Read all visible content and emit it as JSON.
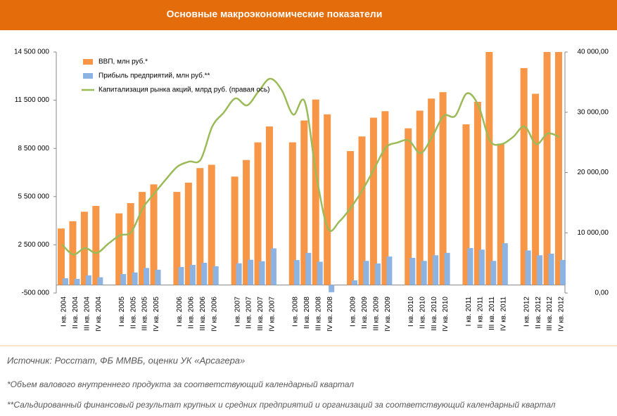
{
  "header": {
    "title": "Основные макроэкономические показатели"
  },
  "chart_data": {
    "type": "bar_line",
    "categories": [
      "I кв. 2004",
      "II кв. 2004",
      "III кв. 2004",
      "IV кв. 2004",
      null,
      "I кв. 2005",
      "II кв. 2005",
      "III кв. 2005",
      "IV кв. 2005",
      null,
      "I кв. 2006",
      "II кв. 2006",
      "III кв. 2006",
      "IV кв. 2006",
      null,
      "I кв. 2007",
      "II кв. 2007",
      "III кв. 2007",
      "IV кв. 2007",
      null,
      "I кв. 2008",
      "II кв. 2008",
      "III кв. 2008",
      "IV кв. 2008",
      null,
      "I кв. 2009",
      "II кв. 2009",
      "III кв. 2009",
      "IV кв. 2009",
      null,
      "I кв. 2010",
      "II кв. 2010",
      "III кв. 2010",
      "IV кв. 2010",
      null,
      "I кв. 2011",
      "II кв. 2011",
      "III кв. 2011",
      "IV кв. 2011",
      null,
      "I кв. 2012",
      "II кв. 2012",
      "III кв. 2012",
      "IV кв. 2012"
    ],
    "series": [
      {
        "name": "ВВП, млн руб.*",
        "kind": "bar",
        "color": "#f79646",
        "values": [
          3516000,
          3969000,
          4561000,
          4920000,
          null,
          4458000,
          5095000,
          5792000,
          6262000,
          null,
          5793000,
          6368000,
          7275000,
          7481000,
          null,
          6747000,
          7780000,
          8877000,
          9866000,
          null,
          8877000,
          10238000,
          11542000,
          10618000,
          null,
          8335000,
          9245000,
          10411000,
          10816000,
          null,
          9750000,
          10850000,
          11600000,
          12000000,
          null,
          10000000,
          11400000,
          14500000,
          8800000,
          null,
          13500000,
          11900000,
          14500000,
          14500000
        ]
      },
      {
        "name": "Прибыль предприятий, млн руб.**",
        "kind": "bar",
        "color": "#8db3e2",
        "values": [
          420000,
          380000,
          600000,
          480000,
          null,
          680000,
          780000,
          1060000,
          950000,
          null,
          1120000,
          1250000,
          1380000,
          1160000,
          null,
          1350000,
          1570000,
          1480000,
          2280000,
          null,
          1550000,
          2000000,
          1450000,
          -450000,
          null,
          290000,
          1500000,
          1340000,
          1770000,
          null,
          1690000,
          1500000,
          1850000,
          2000000,
          null,
          2300000,
          2200000,
          1500000,
          2600000,
          null,
          2150000,
          1850000,
          1950000,
          1560000
        ]
      },
      {
        "name": "Капитализация рынка акций, млрд руб. (правая ось)",
        "kind": "line",
        "axis": "y2",
        "color": "#9bbb59",
        "values": [
          8050,
          6400,
          7460,
          6640,
          8160,
          9560,
          10150,
          14110,
          16560,
          18890,
          20990,
          21810,
          22160,
          27640,
          29970,
          32300,
          31140,
          33470,
          35570,
          33700,
          29620,
          31720,
          19480,
          10730,
          11900,
          14230,
          17140,
          20640,
          24140,
          24960,
          25310,
          23210,
          25890,
          29390,
          29390,
          33120,
          31140,
          25310,
          24720,
          25890,
          27640,
          24720,
          26470,
          25890
        ]
      }
    ],
    "ylim": [
      -500000,
      14500000
    ],
    "yticks": [
      {
        "value": -500000,
        "label": "-500 000"
      },
      {
        "value": 2500000,
        "label": "2 500 000"
      },
      {
        "value": 5500000,
        "label": "5 500 000"
      },
      {
        "value": 8500000,
        "label": "8 500 000"
      },
      {
        "value": 11500000,
        "label": "11 500 000"
      },
      {
        "value": 14500000,
        "label": "14 500 000"
      }
    ],
    "y2lim": [
      0,
      40000
    ],
    "y2ticks": [
      {
        "value": 0,
        "label": "0,00"
      },
      {
        "value": 10000,
        "label": "10 000,00"
      },
      {
        "value": 20000,
        "label": "20 000,00"
      },
      {
        "value": 30000,
        "label": "30 000,00"
      },
      {
        "value": 40000,
        "label": "40 000,00"
      }
    ],
    "legend": "top-left"
  },
  "notes": [
    "Источник: Росстат, ФБ ММВБ, оценки УК «Арсагера»",
    "*Объем валового внутреннего продукта за соответствующий календарный квартал",
    "**Сальдированный финансовый результат крупных и средних предприятий и организаций за соответствующий календарный квартал"
  ]
}
